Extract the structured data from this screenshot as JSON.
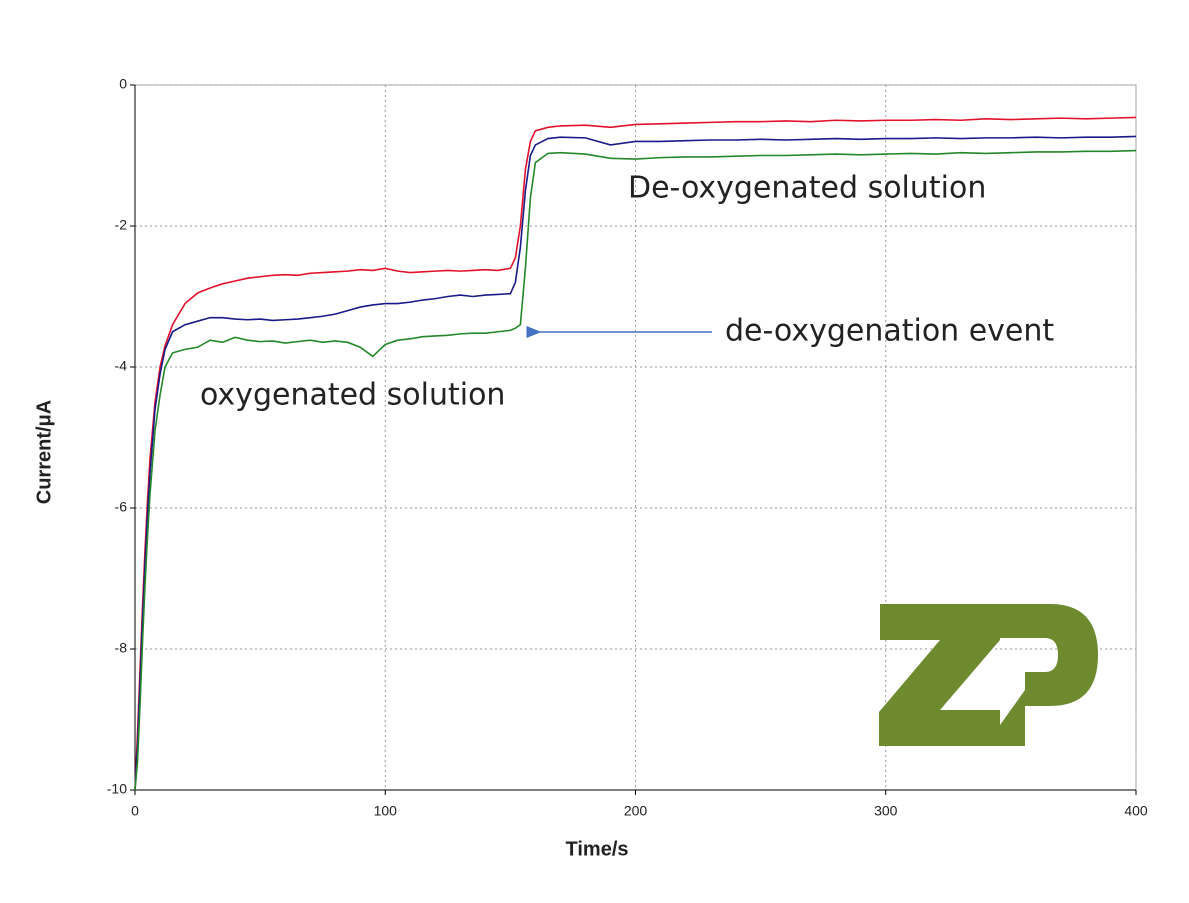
{
  "chart_data": {
    "type": "line",
    "xlabel": "Time/s",
    "ylabel": "Current/μA",
    "x": [
      0,
      1,
      2,
      3,
      4,
      5,
      6,
      8,
      10,
      12,
      15,
      20,
      25,
      30,
      35,
      40,
      45,
      50,
      55,
      60,
      65,
      70,
      75,
      80,
      85,
      90,
      95,
      100,
      105,
      110,
      115,
      120,
      125,
      130,
      135,
      140,
      145,
      150,
      152,
      154,
      156,
      158,
      160,
      165,
      170,
      180,
      190,
      200,
      210,
      220,
      230,
      240,
      250,
      260,
      270,
      280,
      290,
      300,
      310,
      320,
      330,
      340,
      350,
      360,
      370,
      380,
      390,
      400
    ],
    "series": [
      {
        "color": "#e3122c",
        "values": [
          -10,
          -9.2,
          -8.3,
          -7.4,
          -6.6,
          -5.9,
          -5.3,
          -4.5,
          -4.0,
          -3.7,
          -3.4,
          -3.1,
          -2.95,
          -2.88,
          -2.82,
          -2.78,
          -2.74,
          -2.72,
          -2.7,
          -2.69,
          -2.7,
          -2.67,
          -2.66,
          -2.65,
          -2.64,
          -2.62,
          -2.63,
          -2.6,
          -2.64,
          -2.66,
          -2.65,
          -2.64,
          -2.63,
          -2.64,
          -2.63,
          -2.62,
          -2.63,
          -2.6,
          -2.45,
          -2.0,
          -1.2,
          -0.8,
          -0.65,
          -0.6,
          -0.58,
          -0.57,
          -0.6,
          -0.56,
          -0.55,
          -0.54,
          -0.53,
          -0.52,
          -0.52,
          -0.51,
          -0.52,
          -0.5,
          -0.51,
          -0.5,
          -0.5,
          -0.49,
          -0.5,
          -0.48,
          -0.49,
          -0.48,
          -0.47,
          -0.48,
          -0.47,
          -0.46
        ]
      },
      {
        "color": "#1a1a8a",
        "values": [
          -10,
          -9.4,
          -8.5,
          -7.6,
          -6.8,
          -6.1,
          -5.5,
          -4.6,
          -4.1,
          -3.75,
          -3.5,
          -3.4,
          -3.35,
          -3.3,
          -3.3,
          -3.32,
          -3.33,
          -3.32,
          -3.34,
          -3.33,
          -3.32,
          -3.3,
          -3.28,
          -3.25,
          -3.2,
          -3.15,
          -3.12,
          -3.1,
          -3.1,
          -3.08,
          -3.05,
          -3.03,
          -3.0,
          -2.98,
          -3.0,
          -2.98,
          -2.97,
          -2.96,
          -2.8,
          -2.3,
          -1.5,
          -1.0,
          -0.85,
          -0.76,
          -0.74,
          -0.75,
          -0.85,
          -0.8,
          -0.8,
          -0.79,
          -0.78,
          -0.78,
          -0.77,
          -0.78,
          -0.77,
          -0.76,
          -0.77,
          -0.76,
          -0.76,
          -0.75,
          -0.76,
          -0.75,
          -0.75,
          -0.74,
          -0.75,
          -0.74,
          -0.74,
          -0.73
        ]
      },
      {
        "color": "#23882a",
        "values": [
          -10,
          -9.6,
          -8.8,
          -7.9,
          -7.1,
          -6.4,
          -5.8,
          -4.9,
          -4.4,
          -4.0,
          -3.8,
          -3.75,
          -3.72,
          -3.62,
          -3.65,
          -3.58,
          -3.62,
          -3.64,
          -3.63,
          -3.66,
          -3.64,
          -3.62,
          -3.65,
          -3.63,
          -3.65,
          -3.72,
          -3.85,
          -3.68,
          -3.62,
          -3.6,
          -3.57,
          -3.56,
          -3.55,
          -3.53,
          -3.52,
          -3.52,
          -3.5,
          -3.48,
          -3.45,
          -3.4,
          -2.6,
          -1.6,
          -1.1,
          -0.97,
          -0.96,
          -0.98,
          -1.04,
          -1.05,
          -1.03,
          -1.02,
          -1.02,
          -1.01,
          -1.0,
          -1.0,
          -0.99,
          -0.98,
          -0.99,
          -0.98,
          -0.97,
          -0.98,
          -0.96,
          -0.97,
          -0.96,
          -0.95,
          -0.95,
          -0.94,
          -0.94,
          -0.93
        ]
      }
    ],
    "xlim": [
      0,
      400
    ],
    "xticks": [
      0,
      100,
      200,
      300,
      400
    ],
    "ylim": [
      -10,
      0
    ],
    "yticks": [
      -10,
      -8,
      -6,
      -4,
      -2,
      0
    ],
    "grid": true,
    "annotations": [
      "De-oxygenated solution",
      "de-oxygenation event",
      "oxygenated solution"
    ]
  }
}
